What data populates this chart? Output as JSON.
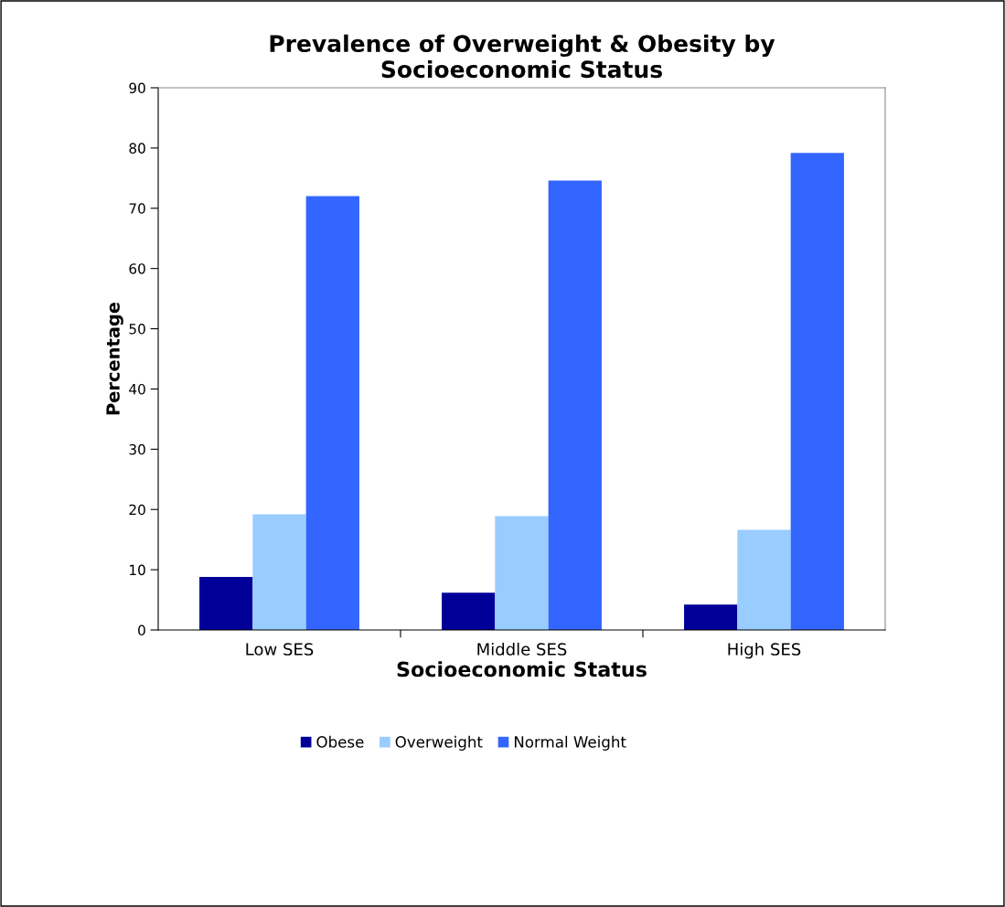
{
  "chart_data": {
    "type": "bar",
    "title": "Prevalence of Overweight & Obesity by\nSocioeconomic Status",
    "xlabel": "Socioeconomic Status",
    "ylabel": "Percentage",
    "categories": [
      "Low SES",
      "Middle SES",
      "High SES"
    ],
    "series": [
      {
        "name": "Obese",
        "color": "#000099",
        "values": [
          8.8,
          6.2,
          4.2
        ]
      },
      {
        "name": "Overweight",
        "color": "#99ccff",
        "values": [
          19.2,
          18.9,
          16.6
        ]
      },
      {
        "name": "Normal Weight",
        "color": "#3366ff",
        "values": [
          72.0,
          74.6,
          79.2
        ]
      }
    ],
    "ylim": [
      0,
      90
    ],
    "yticks": [
      0,
      10,
      20,
      30,
      40,
      50,
      60,
      70,
      80,
      90
    ],
    "grid": false,
    "legend": "bottom"
  }
}
